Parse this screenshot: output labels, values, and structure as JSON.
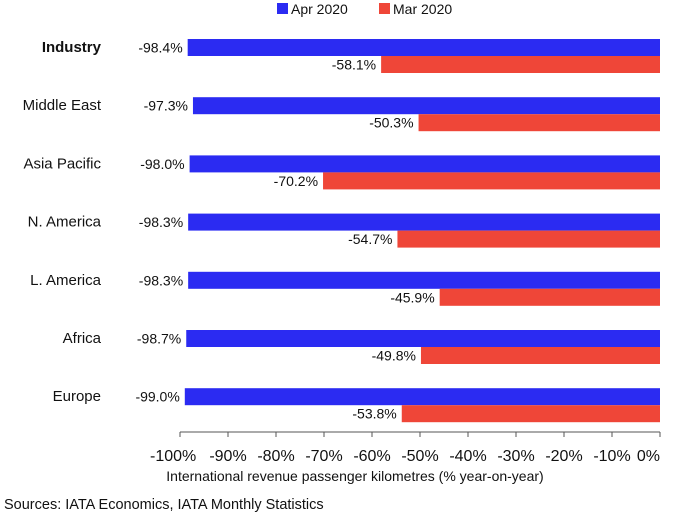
{
  "chart_data": {
    "type": "bar",
    "orientation": "horizontal",
    "categories": [
      "Industry",
      "Middle East",
      "Asia Pacific",
      "N. America",
      "L. America",
      "Africa",
      "Europe"
    ],
    "series": [
      {
        "name": "Apr 2020",
        "color": "#2b2bf2",
        "values": [
          -98.4,
          -97.3,
          -98.0,
          -98.3,
          -98.3,
          -98.7,
          -99.0
        ],
        "labels": [
          "-98.4%",
          "-97.3%",
          "-98.0%",
          "-98.3%",
          "-98.3%",
          "-98.7%",
          "-99.0%"
        ]
      },
      {
        "name": "Mar 2020",
        "color": "#ef4638",
        "values": [
          -58.1,
          -50.3,
          -70.2,
          -54.7,
          -45.9,
          -49.8,
          -53.8
        ],
        "labels": [
          "-58.1%",
          "-50.3%",
          "-70.2%",
          "-54.7%",
          "-45.9%",
          "-49.8%",
          "-53.8%"
        ]
      }
    ],
    "xlim": [
      -100,
      0
    ],
    "xticks": [
      "-100%",
      "-90%",
      "-80%",
      "-70%",
      "-60%",
      "-50%",
      "-40%",
      "-30%",
      "-20%",
      "-10%",
      "0%"
    ],
    "xlabel": "International revenue passenger kilometres (% year-on-year)",
    "ylabel": "",
    "title": "",
    "bold_category": "Industry",
    "legend_position": "top-center",
    "grid": false
  },
  "source": "Sources: IATA Economics, IATA Monthly Statistics"
}
